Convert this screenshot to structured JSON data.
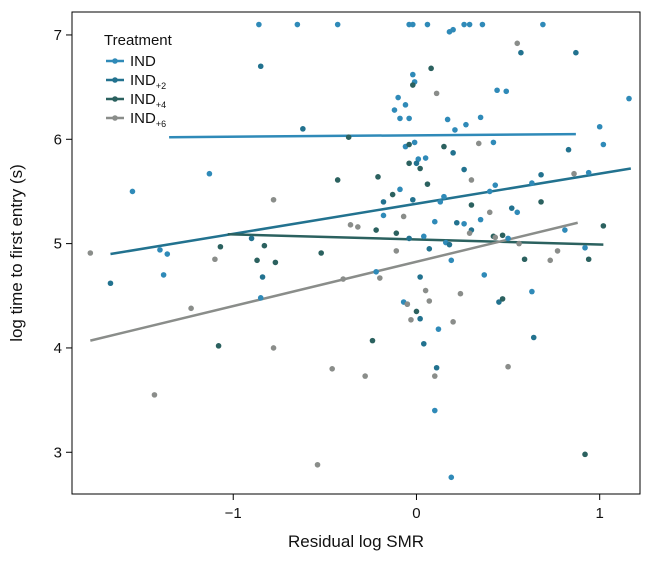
{
  "chart_data": {
    "type": "scatter",
    "title": "",
    "xlabel": "Residual log SMR",
    "ylabel": "log time to first entry (s)",
    "xlim": [
      -1.88,
      1.22
    ],
    "ylim": [
      2.6,
      7.22
    ],
    "xticks": [
      -1,
      0,
      1
    ],
    "xtick_labels": [
      "−1",
      "0",
      "1"
    ],
    "yticks": [
      3,
      4,
      5,
      6,
      7
    ],
    "ytick_labels": [
      "3",
      "4",
      "5",
      "6",
      "7"
    ],
    "grid": false,
    "legend": {
      "title": "Treatment",
      "placement": "top-left",
      "entries": [
        {
          "label": "IND",
          "sub": ""
        },
        {
          "label": "IND",
          "sub": "+2"
        },
        {
          "label": "IND",
          "sub": "+4"
        },
        {
          "label": "IND",
          "sub": "+6"
        }
      ]
    },
    "series": [
      {
        "name": "IND",
        "color": "#2f8ab8",
        "fit": {
          "x": [
            -1.35,
            0.87
          ],
          "y": [
            6.02,
            6.05
          ]
        },
        "points": [
          [
            -0.86,
            7.1
          ],
          [
            -0.65,
            7.1
          ],
          [
            -0.43,
            7.1
          ],
          [
            -0.04,
            7.1
          ],
          [
            -0.02,
            7.1
          ],
          [
            0.06,
            7.1
          ],
          [
            0.2,
            7.05
          ],
          [
            0.26,
            7.1
          ],
          [
            0.29,
            7.1
          ],
          [
            0.36,
            7.1
          ],
          [
            0.69,
            7.1
          ],
          [
            0.18,
            7.03
          ],
          [
            -0.02,
            6.62
          ],
          [
            -0.01,
            6.55
          ],
          [
            -0.1,
            6.4
          ],
          [
            -0.06,
            6.33
          ],
          [
            0.44,
            6.47
          ],
          [
            0.49,
            6.46
          ],
          [
            0.35,
            6.21
          ],
          [
            -0.09,
            6.2
          ],
          [
            0.17,
            6.19
          ],
          [
            -0.04,
            6.2
          ],
          [
            0.21,
            6.09
          ],
          [
            0.27,
            6.14
          ],
          [
            -0.12,
            6.28
          ],
          [
            -0.06,
            5.93
          ],
          [
            0.01,
            5.81
          ],
          [
            -0.01,
            5.97
          ],
          [
            0.05,
            5.82
          ],
          [
            -1.13,
            5.67
          ],
          [
            -1.55,
            5.5
          ],
          [
            -0.09,
            5.52
          ],
          [
            0.13,
            5.4
          ],
          [
            0.15,
            5.45
          ],
          [
            0.4,
            5.5
          ],
          [
            0.43,
            5.56
          ],
          [
            0.55,
            5.3
          ],
          [
            0.63,
            5.58
          ],
          [
            0.1,
            5.21
          ],
          [
            0.26,
            5.19
          ],
          [
            0.35,
            5.23
          ],
          [
            -0.18,
            5.27
          ],
          [
            0.04,
            5.07
          ],
          [
            0.5,
            5.05
          ],
          [
            0.81,
            5.13
          ],
          [
            0.92,
            4.96
          ],
          [
            -1.4,
            4.94
          ],
          [
            -1.36,
            4.9
          ],
          [
            0.19,
            4.84
          ],
          [
            0.16,
            5.01
          ],
          [
            -1.38,
            4.7
          ],
          [
            -0.85,
            4.48
          ],
          [
            0.37,
            4.7
          ],
          [
            0.12,
            4.18
          ],
          [
            0.1,
            3.4
          ],
          [
            0.19,
            2.76
          ],
          [
            1.0,
            6.12
          ],
          [
            1.02,
            5.95
          ],
          [
            0.94,
            5.68
          ],
          [
            1.16,
            6.39
          ],
          [
            0.42,
            5.97
          ],
          [
            -0.07,
            4.44
          ],
          [
            -0.22,
            4.73
          ],
          [
            0.63,
            4.54
          ]
        ]
      },
      {
        "name": "IND+2",
        "color": "#22728f",
        "fit": {
          "x": [
            -1.67,
            1.17
          ],
          "y": [
            4.9,
            5.72
          ]
        },
        "points": [
          [
            -1.67,
            4.62
          ],
          [
            -0.85,
            6.7
          ],
          [
            -0.62,
            6.1
          ],
          [
            -0.05,
            4.42
          ],
          [
            0.07,
            4.95
          ],
          [
            -0.04,
            5.05
          ],
          [
            0.0,
            5.77
          ],
          [
            -0.02,
            5.42
          ],
          [
            0.02,
            4.28
          ],
          [
            0.22,
            5.2
          ],
          [
            0.3,
            5.13
          ],
          [
            0.57,
            6.83
          ],
          [
            0.87,
            6.83
          ],
          [
            0.68,
            5.66
          ],
          [
            0.52,
            5.34
          ],
          [
            -0.84,
            4.68
          ],
          [
            -0.9,
            5.05
          ],
          [
            0.18,
            4.99
          ],
          [
            0.04,
            4.04
          ],
          [
            0.11,
            3.81
          ],
          [
            0.64,
            4.1
          ],
          [
            0.45,
            4.44
          ],
          [
            0.02,
            4.68
          ],
          [
            0.2,
            5.87
          ],
          [
            -0.18,
            5.4
          ],
          [
            0.26,
            5.71
          ],
          [
            0.83,
            5.9
          ]
        ]
      },
      {
        "name": "IND+4",
        "color": "#2b615f",
        "fit": {
          "x": [
            -1.03,
            1.02
          ],
          "y": [
            5.09,
            4.99
          ]
        },
        "points": [
          [
            -1.07,
            4.97
          ],
          [
            -0.87,
            4.84
          ],
          [
            -0.77,
            4.82
          ],
          [
            -0.52,
            4.91
          ],
          [
            -0.43,
            5.61
          ],
          [
            -0.37,
            6.02
          ],
          [
            -0.22,
            5.13
          ],
          [
            -0.21,
            5.64
          ],
          [
            -0.13,
            5.47
          ],
          [
            -0.11,
            5.1
          ],
          [
            -0.04,
            5.77
          ],
          [
            -0.04,
            5.95
          ],
          [
            -0.02,
            6.52
          ],
          [
            0.02,
            5.72
          ],
          [
            0.06,
            5.57
          ],
          [
            0.08,
            6.68
          ],
          [
            0.15,
            5.93
          ],
          [
            0.3,
            5.37
          ],
          [
            0.42,
            5.07
          ],
          [
            0.47,
            5.08
          ],
          [
            0.47,
            4.47
          ],
          [
            0.59,
            4.85
          ],
          [
            0.68,
            5.4
          ],
          [
            0.92,
            2.98
          ],
          [
            0.94,
            4.85
          ],
          [
            1.02,
            5.17
          ],
          [
            -0.24,
            4.07
          ],
          [
            0.0,
            4.35
          ],
          [
            -0.83,
            4.98
          ],
          [
            -1.08,
            4.02
          ]
        ]
      },
      {
        "name": "IND+6",
        "color": "#8a8d8a",
        "fit": {
          "x": [
            -1.78,
            0.88
          ],
          "y": [
            4.07,
            5.2
          ]
        },
        "points": [
          [
            -1.78,
            4.91
          ],
          [
            -1.43,
            3.55
          ],
          [
            -1.23,
            4.38
          ],
          [
            -1.1,
            4.85
          ],
          [
            -0.78,
            5.42
          ],
          [
            -0.78,
            4.0
          ],
          [
            -0.54,
            2.88
          ],
          [
            -0.46,
            3.8
          ],
          [
            -0.4,
            4.66
          ],
          [
            -0.36,
            5.18
          ],
          [
            -0.32,
            5.16
          ],
          [
            -0.28,
            3.73
          ],
          [
            -0.2,
            4.67
          ],
          [
            -0.07,
            5.26
          ],
          [
            -0.05,
            4.42
          ],
          [
            -0.03,
            4.27
          ],
          [
            0.05,
            4.55
          ],
          [
            0.07,
            4.45
          ],
          [
            0.1,
            3.73
          ],
          [
            0.11,
            6.44
          ],
          [
            0.2,
            4.25
          ],
          [
            0.29,
            5.1
          ],
          [
            0.3,
            5.61
          ],
          [
            0.34,
            5.96
          ],
          [
            0.4,
            5.3
          ],
          [
            0.43,
            5.06
          ],
          [
            0.5,
            3.82
          ],
          [
            0.55,
            6.92
          ],
          [
            0.56,
            5.0
          ],
          [
            0.73,
            4.84
          ],
          [
            0.77,
            4.93
          ],
          [
            0.86,
            5.67
          ],
          [
            0.24,
            4.52
          ],
          [
            -0.11,
            4.93
          ]
        ]
      }
    ]
  }
}
